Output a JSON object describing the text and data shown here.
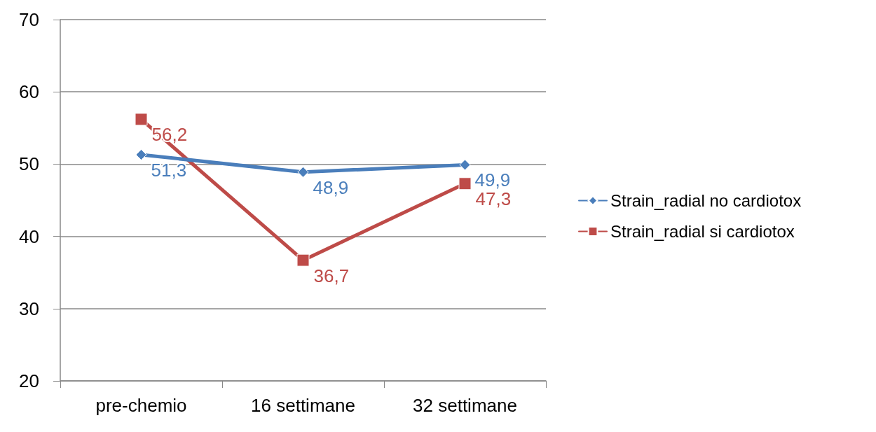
{
  "chart_data": {
    "type": "line",
    "categories": [
      "pre-chemio",
      "16 settimane",
      "32 settimane"
    ],
    "series": [
      {
        "name": "Strain_radial no cardiotox",
        "color": "#4a7ebb",
        "marker": "diamond",
        "values": [
          51.3,
          48.9,
          49.9
        ],
        "value_labels": [
          "51,3",
          "48,9",
          "49,9"
        ]
      },
      {
        "name": "Strain_radial si cardiotox",
        "color": "#be4b48",
        "marker": "square",
        "values": [
          56.2,
          36.7,
          47.3
        ],
        "value_labels": [
          "56,2",
          "36,7",
          "47,3"
        ]
      }
    ],
    "ylim": [
      20,
      70
    ],
    "yticks": [
      20,
      30,
      40,
      50,
      60,
      70
    ],
    "grid": "y",
    "legend": "right",
    "line_style": "solid"
  }
}
